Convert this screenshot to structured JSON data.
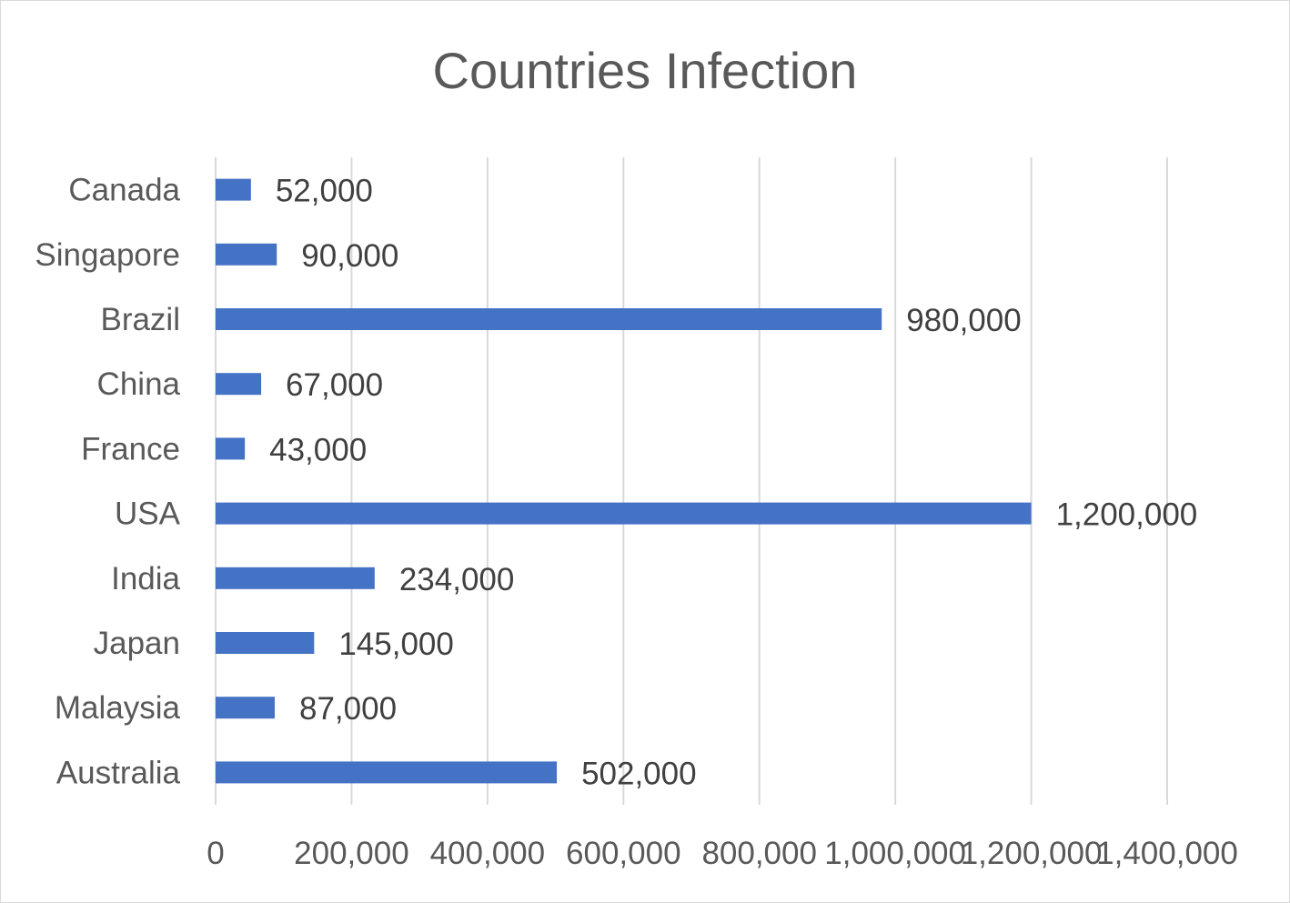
{
  "chart_data": {
    "type": "bar",
    "orientation": "horizontal",
    "title": "Countries Infection",
    "xlabel": "",
    "ylabel": "",
    "categories": [
      "Canada",
      "Singapore",
      "Brazil",
      "China",
      "France",
      "USA",
      "India",
      "Japan",
      "Malaysia",
      "Australia"
    ],
    "values": [
      52000,
      90000,
      980000,
      67000,
      43000,
      1200000,
      234000,
      145000,
      87000,
      502000
    ],
    "data_labels": [
      "52,000",
      "90,000",
      "980,000",
      "67,000",
      "43,000",
      "1,200,000",
      "234,000",
      "145,000",
      "87,000",
      "502,000"
    ],
    "xlim": [
      0,
      1400000
    ],
    "x_ticks": [
      0,
      200000,
      400000,
      600000,
      800000,
      1000000,
      1200000,
      1400000
    ],
    "x_tick_labels": [
      "0",
      "200,000",
      "400,000",
      "600,000",
      "800,000",
      "1,000,000",
      "1,200,000",
      "1,400,000"
    ],
    "grid": "vertical",
    "legend": "none",
    "colors": {
      "bar": "#4472c4",
      "grid": "#d9d9d9",
      "text": "#595959",
      "border": "#d9d9d9"
    }
  }
}
